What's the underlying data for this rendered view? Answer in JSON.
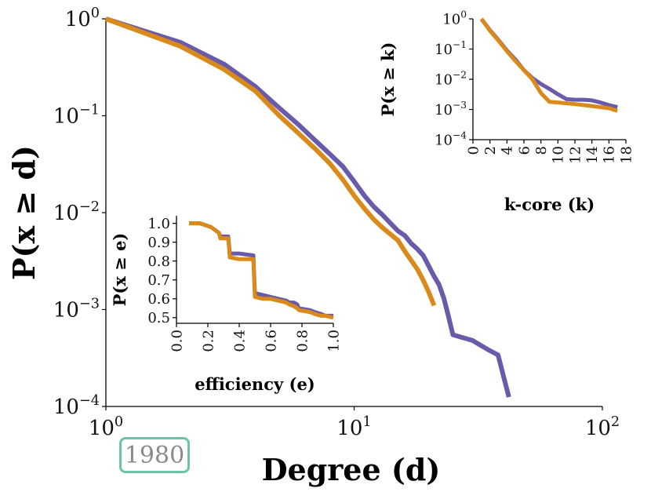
{
  "colors": {
    "series_a": "#6a5aaa",
    "series_b": "#d98a1a",
    "badge_border": "#6cc3a8",
    "badge_text": "#8a8a8a"
  },
  "badge": {
    "text": "1980"
  },
  "chart_data": [
    {
      "id": "main",
      "type": "line",
      "title": "",
      "xlabel": "Degree (d)",
      "ylabel": "P(x ≥ d)",
      "xscale": "log",
      "yscale": "log",
      "xlim": [
        1,
        100
      ],
      "ylim": [
        0.0001,
        1
      ],
      "xticks": [
        {
          "base": "10",
          "exp": "0"
        },
        {
          "base": "10",
          "exp": "1"
        },
        {
          "base": "10",
          "exp": "2"
        }
      ],
      "yticks": [
        {
          "base": "10",
          "exp": "0"
        },
        {
          "base": "10",
          "exp": "−1"
        },
        {
          "base": "10",
          "exp": "−2"
        },
        {
          "base": "10",
          "exp": "−3"
        },
        {
          "base": "10",
          "exp": "−4"
        }
      ],
      "series": [
        {
          "x": [
            1,
            2,
            3,
            4,
            5,
            6,
            7,
            8,
            9,
            10,
            11,
            12,
            13,
            14,
            15,
            16,
            17,
            18,
            19,
            20,
            21,
            22,
            23,
            24,
            25,
            30,
            35,
            38,
            42
          ],
          "y": [
            1,
            0.57,
            0.34,
            0.2,
            0.12,
            0.08,
            0.055,
            0.04,
            0.03,
            0.021,
            0.015,
            0.0115,
            0.0095,
            0.0078,
            0.0065,
            0.0058,
            0.0048,
            0.0042,
            0.0036,
            0.0028,
            0.0022,
            0.0018,
            0.0013,
            0.00085,
            0.00055,
            0.00048,
            0.00038,
            0.00034,
            0.000125
          ]
        },
        {
          "x": [
            1,
            2,
            3,
            4,
            5,
            6,
            7,
            8,
            9,
            10,
            11,
            12,
            13,
            14,
            15,
            16,
            17,
            18,
            19,
            20,
            21
          ],
          "y": [
            1,
            0.52,
            0.3,
            0.18,
            0.1,
            0.065,
            0.045,
            0.032,
            0.022,
            0.015,
            0.011,
            0.0085,
            0.007,
            0.006,
            0.0052,
            0.004,
            0.0032,
            0.0026,
            0.002,
            0.0015,
            0.0011
          ]
        }
      ]
    },
    {
      "id": "inset-kcore",
      "type": "line",
      "xlabel": "k-core (k)",
      "ylabel": "P(x ≥ k)",
      "xscale": "linear",
      "yscale": "log",
      "xlim": [
        0,
        18
      ],
      "ylim": [
        0.0001,
        1
      ],
      "xticks": [
        "0",
        "2",
        "4",
        "6",
        "8",
        "10",
        "12",
        "14",
        "16",
        "18"
      ],
      "yticks": [
        {
          "base": "10",
          "exp": "0"
        },
        {
          "base": "10",
          "exp": "−1"
        },
        {
          "base": "10",
          "exp": "−2"
        },
        {
          "base": "10",
          "exp": "−3"
        },
        {
          "base": "10",
          "exp": "−4"
        }
      ],
      "series": [
        {
          "x": [
            1,
            2,
            3,
            4,
            5,
            6,
            7,
            8,
            9,
            10,
            11,
            12,
            13,
            14,
            15,
            16,
            17
          ],
          "y": [
            1,
            0.42,
            0.2,
            0.09,
            0.045,
            0.02,
            0.011,
            0.007,
            0.0048,
            0.0032,
            0.0022,
            0.0021,
            0.0021,
            0.002,
            0.0017,
            0.0014,
            0.0012
          ]
        },
        {
          "x": [
            1,
            2,
            3,
            4,
            5,
            6,
            7,
            8,
            9,
            10,
            11,
            12,
            13,
            14,
            15,
            16,
            17
          ],
          "y": [
            1,
            0.4,
            0.19,
            0.085,
            0.04,
            0.02,
            0.01,
            0.0035,
            0.0018,
            0.0017,
            0.0016,
            0.0015,
            0.0014,
            0.0013,
            0.0012,
            0.0011,
            0.0009
          ]
        }
      ]
    },
    {
      "id": "inset-efficiency",
      "type": "line",
      "xlabel": "efficiency (e)",
      "ylabel": "P(x ≥ e)",
      "xscale": "linear",
      "yscale": "linear",
      "xlim": [
        0,
        1
      ],
      "ylim": [
        0.47,
        1.04
      ],
      "xticks": [
        "0.0",
        "0.2",
        "0.4",
        "0.6",
        "0.8",
        "1.0"
      ],
      "yticks": [
        "0.5",
        "0.6",
        "0.7",
        "0.8",
        "0.9",
        "1.0"
      ],
      "series": [
        {
          "x": [
            0.08,
            0.15,
            0.22,
            0.27,
            0.28,
            0.33,
            0.34,
            0.4,
            0.49,
            0.5,
            0.55,
            0.6,
            0.65,
            0.7,
            0.72,
            0.75,
            0.77,
            0.78,
            0.85,
            0.88,
            0.92,
            0.95,
            1.0
          ],
          "y": [
            1.0,
            1.0,
            0.98,
            0.95,
            0.93,
            0.93,
            0.84,
            0.84,
            0.83,
            0.63,
            0.62,
            0.61,
            0.6,
            0.59,
            0.58,
            0.58,
            0.57,
            0.55,
            0.54,
            0.53,
            0.52,
            0.51,
            0.51
          ]
        },
        {
          "x": [
            0.08,
            0.15,
            0.22,
            0.27,
            0.28,
            0.33,
            0.34,
            0.4,
            0.49,
            0.5,
            0.55,
            0.6,
            0.65,
            0.7,
            0.72,
            0.75,
            0.77,
            0.78,
            0.85,
            0.88,
            0.92,
            0.95,
            1.0
          ],
          "y": [
            1.0,
            1.0,
            0.98,
            0.95,
            0.92,
            0.92,
            0.82,
            0.81,
            0.81,
            0.61,
            0.6,
            0.6,
            0.59,
            0.58,
            0.57,
            0.56,
            0.55,
            0.54,
            0.53,
            0.52,
            0.51,
            0.51,
            0.5
          ]
        }
      ]
    }
  ]
}
